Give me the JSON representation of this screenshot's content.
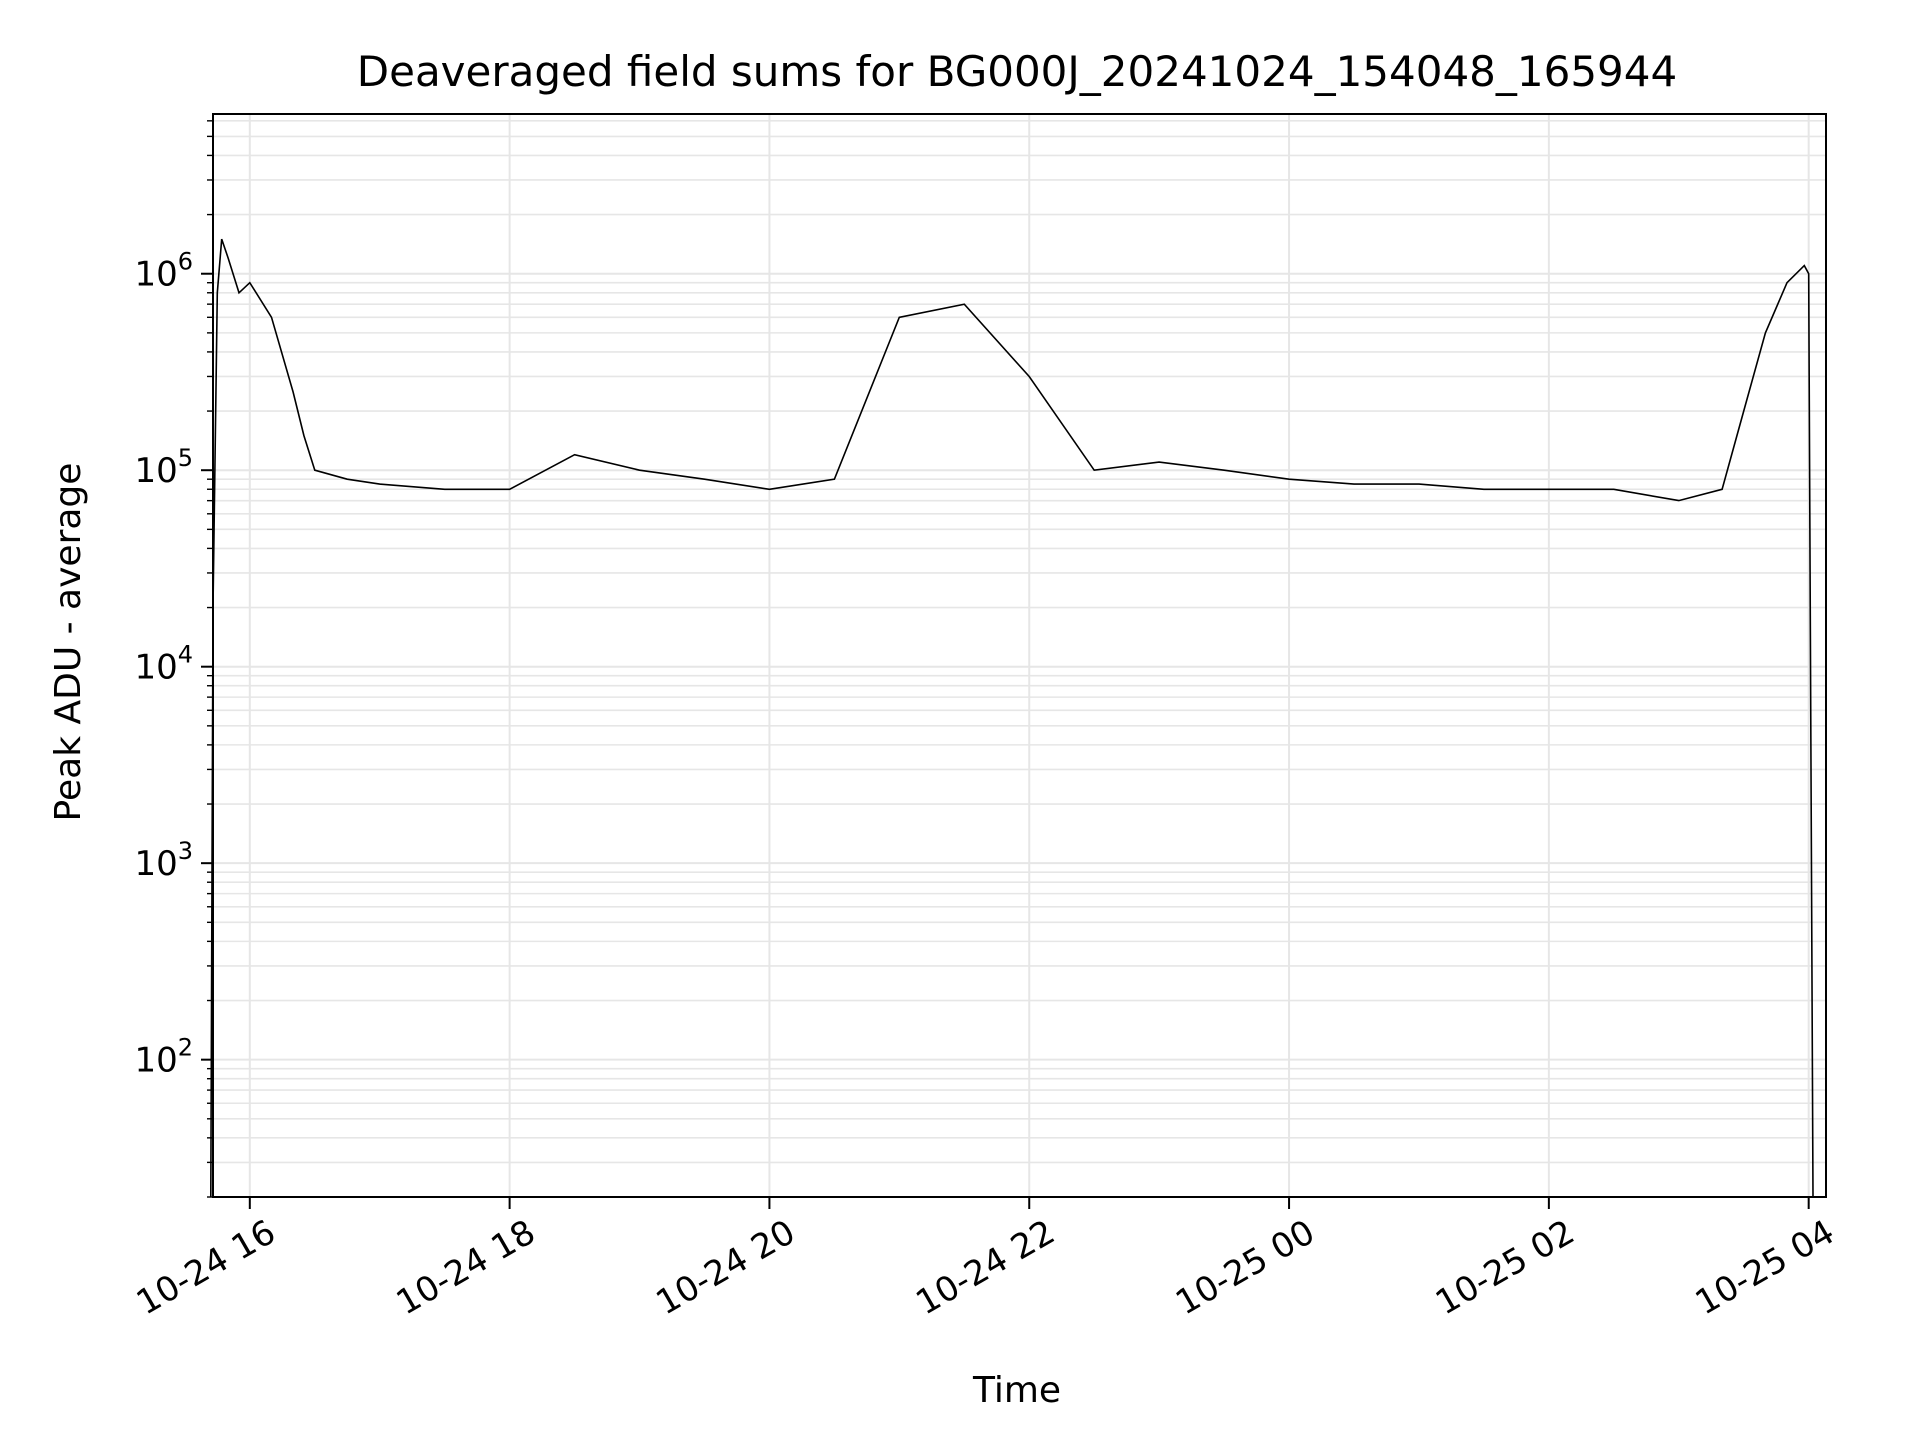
{
  "chart_data": {
    "type": "line",
    "title": "Deaveraged field sums for BG000J_20241024_154048_165944",
    "xlabel": "Time",
    "ylabel": "Peak ADU - average",
    "y_scale": "log",
    "ylim": [
      20,
      6500000
    ],
    "xlim": [
      "2024-10-24 15:43",
      "2024-10-25 04:08"
    ],
    "grid": true,
    "colors": {
      "line": "#000000",
      "grid": "#e6e6e6",
      "axis": "#000000"
    },
    "x_ticks": [
      {
        "x": "2024-10-24 16:00",
        "label": "10-24 16"
      },
      {
        "x": "2024-10-24 18:00",
        "label": "10-24 18"
      },
      {
        "x": "2024-10-24 20:00",
        "label": "10-24 20"
      },
      {
        "x": "2024-10-24 22:00",
        "label": "10-24 22"
      },
      {
        "x": "2024-10-25 00:00",
        "label": "10-25 00"
      },
      {
        "x": "2024-10-25 02:00",
        "label": "10-25 02"
      },
      {
        "x": "2024-10-25 04:00",
        "label": "10-25 04"
      }
    ],
    "y_ticks": [
      {
        "value": 100,
        "base": "10",
        "exp": "2"
      },
      {
        "value": 1000,
        "base": "10",
        "exp": "3"
      },
      {
        "value": 10000,
        "base": "10",
        "exp": "4"
      },
      {
        "value": 100000,
        "base": "10",
        "exp": "5"
      },
      {
        "value": 1000000,
        "base": "10",
        "exp": "6"
      }
    ],
    "series": [
      {
        "x": [
          "2024-10-24 15:42",
          "2024-10-24 15:43",
          "2024-10-24 15:45",
          "2024-10-24 15:47",
          "2024-10-24 15:50",
          "2024-10-24 15:55",
          "2024-10-24 16:00",
          "2024-10-24 16:10",
          "2024-10-24 16:20",
          "2024-10-24 16:25",
          "2024-10-24 16:30",
          "2024-10-24 16:45",
          "2024-10-24 17:00",
          "2024-10-24 17:30",
          "2024-10-24 18:00",
          "2024-10-24 18:30",
          "2024-10-24 19:00",
          "2024-10-24 19:30",
          "2024-10-24 20:00",
          "2024-10-24 20:30",
          "2024-10-24 21:00",
          "2024-10-24 21:30",
          "2024-10-24 22:00",
          "2024-10-24 22:30",
          "2024-10-24 23:00",
          "2024-10-24 23:30",
          "2024-10-25 00:00",
          "2024-10-25 00:30",
          "2024-10-25 01:00",
          "2024-10-25 01:30",
          "2024-10-25 02:00",
          "2024-10-25 02:30",
          "2024-10-25 03:00",
          "2024-10-25 03:20",
          "2024-10-25 03:30",
          "2024-10-25 03:40",
          "2024-10-25 03:50",
          "2024-10-25 03:58",
          "2024-10-25 04:00",
          "2024-10-25 04:02"
        ],
        "values": [
          20,
          20000,
          800000,
          1500000,
          1200000,
          800000,
          900000,
          600000,
          250000,
          150000,
          100000,
          90000,
          85000,
          80000,
          80000,
          120000,
          100000,
          90000,
          80000,
          90000,
          600000,
          700000,
          300000,
          100000,
          110000,
          100000,
          90000,
          85000,
          85000,
          80000,
          80000,
          80000,
          70000,
          80000,
          200000,
          500000,
          900000,
          1100000,
          1000000,
          20
        ]
      }
    ]
  }
}
